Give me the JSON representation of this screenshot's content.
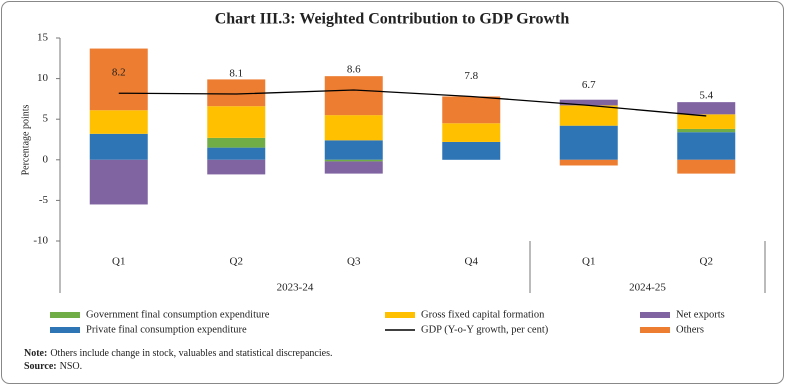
{
  "chart_data": {
    "type": "bar",
    "stacked": true,
    "title": "Chart III.3: Weighted Contribution to GDP Growth",
    "y_label": "Percentage points",
    "categories": [
      "Q1",
      "Q2",
      "Q3",
      "Q4",
      "Q1",
      "Q2"
    ],
    "groups": [
      {
        "label": "2023-24",
        "size": 4
      },
      {
        "label": "2024-25",
        "size": 2
      }
    ],
    "series": [
      {
        "name": "Private final consumption expenditure",
        "type": "bar",
        "color": "#2e75b6",
        "values": [
          3.2,
          1.5,
          2.4,
          2.2,
          4.2,
          3.4
        ]
      },
      {
        "name": "Government final consumption expenditure",
        "type": "bar",
        "color": "#70ad47",
        "values": [
          0,
          1.2,
          -0.2,
          0,
          0,
          0.4
        ]
      },
      {
        "name": "Gross fixed capital formation",
        "type": "bar",
        "color": "#ffc000",
        "values": [
          2.9,
          3.9,
          3.1,
          2.3,
          2.5,
          1.8
        ]
      },
      {
        "name": "Net exports",
        "type": "bar",
        "color": "#8064a2",
        "values": [
          -5.5,
          -1.8,
          -1.5,
          0,
          0.7,
          1.5
        ]
      },
      {
        "name": "Others",
        "type": "bar",
        "color": "#ed7d31",
        "values": [
          7.6,
          3.3,
          4.8,
          3.3,
          -0.7,
          -1.7
        ]
      },
      {
        "name": "GDP (Y-o-Y growth, per cent)",
        "type": "line",
        "color": "#000000",
        "values": [
          8.2,
          8.1,
          8.6,
          7.8,
          6.7,
          5.4
        ]
      }
    ],
    "ylim": [
      -10,
      15
    ],
    "yticks": [
      -10,
      -5,
      0,
      5,
      10,
      15
    ],
    "grid": false,
    "notes": [
      {
        "label": "Note:",
        "text": "Others include change in stock, valuables and statistical discrepancies."
      },
      {
        "label": "Source:",
        "text": "NSO."
      }
    ]
  }
}
